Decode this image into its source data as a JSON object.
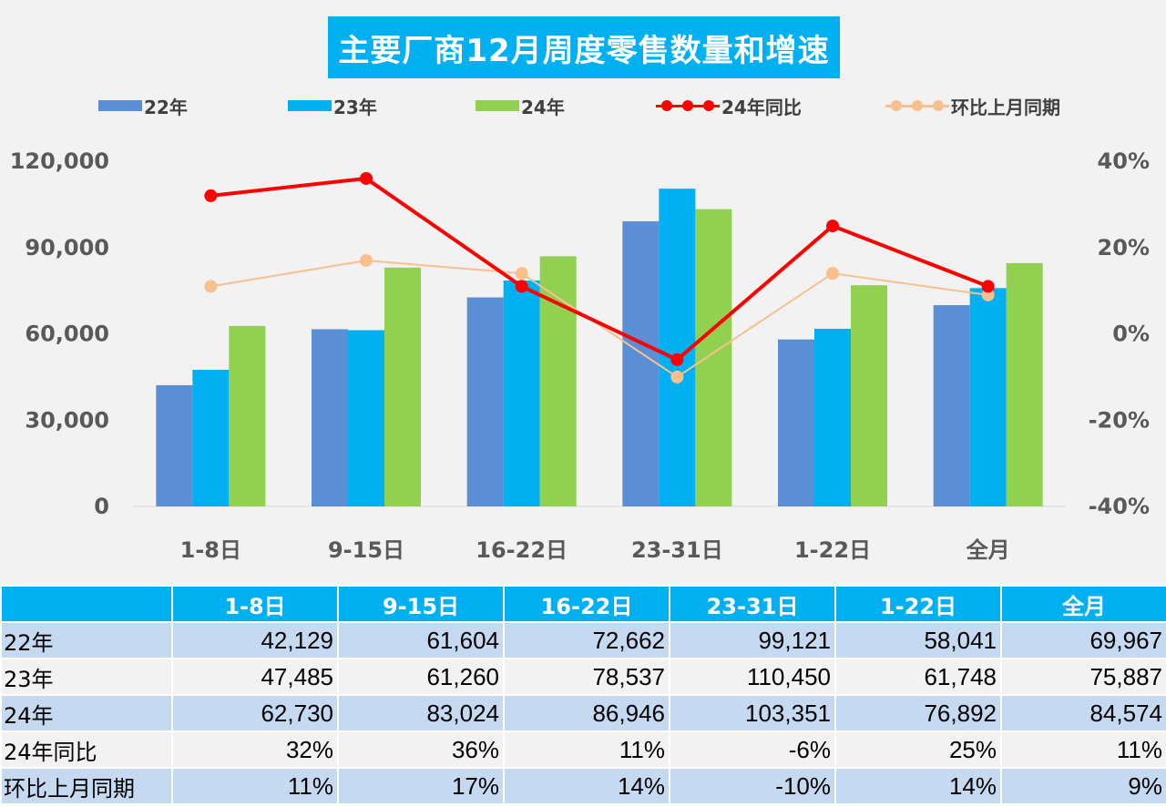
{
  "title": "主要厂商12月周度零售数量和增速",
  "legend": [
    "22年",
    "23年",
    "24年",
    "24年同比",
    "环比上月同期"
  ],
  "colors": {
    "s22": "#5a8fd6",
    "s23": "#00b0f0",
    "s24": "#92d050",
    "yoy": "#ff0000",
    "mom": "#f8c08e",
    "header": "#00b0f0"
  },
  "chart_data": {
    "type": "bar",
    "categories": [
      "1-8日",
      "9-15日",
      "16-22日",
      "23-31日",
      "1-22日",
      "全月"
    ],
    "series": [
      {
        "name": "22年",
        "type": "bar",
        "axis": "left",
        "values": [
          42129,
          61604,
          72662,
          99121,
          58041,
          69967
        ]
      },
      {
        "name": "23年",
        "type": "bar",
        "axis": "left",
        "values": [
          47485,
          61260,
          78537,
          110450,
          61748,
          75887
        ]
      },
      {
        "name": "24年",
        "type": "bar",
        "axis": "left",
        "values": [
          62730,
          83024,
          86946,
          103351,
          76892,
          84574
        ]
      },
      {
        "name": "24年同比",
        "type": "line",
        "axis": "right",
        "values": [
          32,
          36,
          11,
          -6,
          25,
          11
        ]
      },
      {
        "name": "环比上月同期",
        "type": "line",
        "axis": "right",
        "values": [
          11,
          17,
          14,
          -10,
          14,
          9
        ]
      }
    ],
    "y_left": {
      "min": 0,
      "max": 120000,
      "ticks": [
        "0",
        "30,000",
        "60,000",
        "90,000",
        "120,000"
      ]
    },
    "y_right": {
      "min": -40,
      "max": 40,
      "ticks": [
        "-40%",
        "-20%",
        "0%",
        "20%",
        "40%"
      ]
    },
    "grid": false,
    "legend_position": "top"
  },
  "table": {
    "header": [
      "",
      "1-8日",
      "9-15日",
      "16-22日",
      "23-31日",
      "1-22日",
      "全月"
    ],
    "rows": [
      {
        "label": "22年",
        "cells": [
          "42,129",
          "61,604",
          "72,662",
          "99,121",
          "58,041",
          "69,967"
        ]
      },
      {
        "label": "23年",
        "cells": [
          "47,485",
          "61,260",
          "78,537",
          "110,450",
          "61,748",
          "75,887"
        ]
      },
      {
        "label": "24年",
        "cells": [
          "62,730",
          "83,024",
          "86,946",
          "103,351",
          "76,892",
          "84,574"
        ]
      },
      {
        "label": "24年同比",
        "cells": [
          "32%",
          "36%",
          "11%",
          "-6%",
          "25%",
          "11%"
        ]
      },
      {
        "label": "环比上月同期",
        "cells": [
          "11%",
          "17%",
          "14%",
          "-10%",
          "14%",
          "9%"
        ]
      }
    ]
  }
}
